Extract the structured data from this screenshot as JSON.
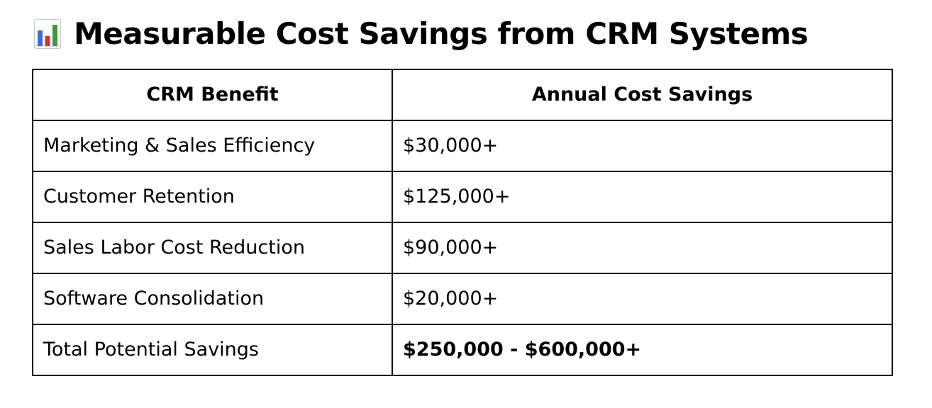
{
  "heading": {
    "icon": "bar-chart-icon",
    "title": "Measurable Cost Savings from CRM Systems"
  },
  "table": {
    "headers": [
      "CRM Benefit",
      "Annual Cost Savings"
    ],
    "rows": [
      {
        "benefit": "Marketing & Sales Efficiency",
        "savings": "$30,000+"
      },
      {
        "benefit": "Customer Retention",
        "savings": "$125,000+"
      },
      {
        "benefit": "Sales Labor Cost Reduction",
        "savings": "$90,000+"
      },
      {
        "benefit": "Software Consolidation",
        "savings": "$20,000+"
      },
      {
        "benefit": "Total Potential Savings",
        "savings": "$250,000 - $600,000+"
      }
    ]
  },
  "colors": {
    "icon_bar_blue": "#3a6fd8",
    "icon_bar_red": "#d9302c",
    "icon_bar_green": "#3e9a3a",
    "icon_frame": "#c8c8c8"
  }
}
